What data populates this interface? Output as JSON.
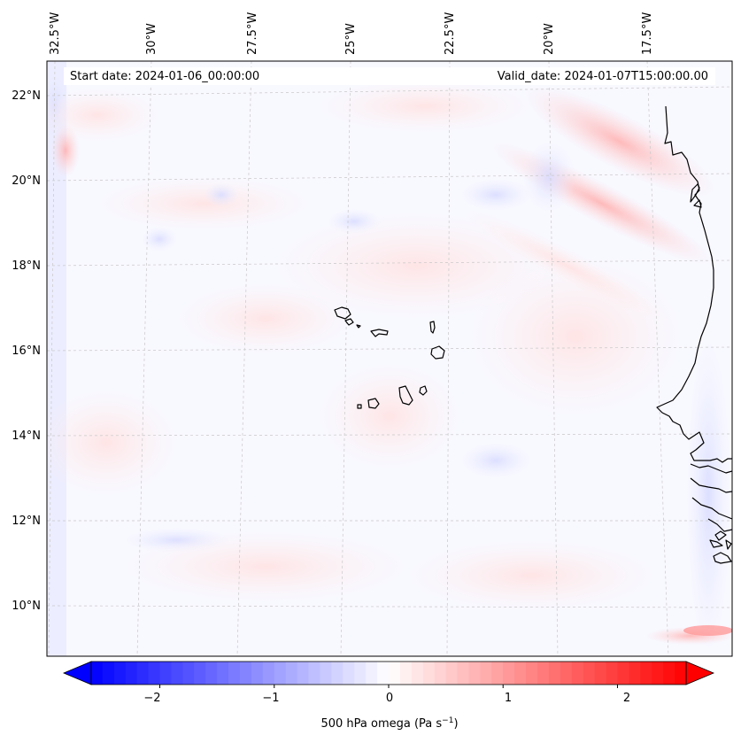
{
  "header": {
    "start_date": "Start date: 2024-01-06_00:00:00",
    "valid_date": "Valid_date: 2024-01-07T15:00:00.00"
  },
  "map": {
    "lon_labels": [
      "32.5°W",
      "30°W",
      "27.5°W",
      "25°W",
      "22.5°W",
      "20°W",
      "17.5°W"
    ],
    "lat_labels": [
      "22°N",
      "20°N",
      "18°N",
      "16°N",
      "14°N",
      "12°N",
      "10°N"
    ],
    "gridlines": "dashed",
    "coastline_color": "#000000",
    "background_color": "#f8f8ff"
  },
  "colorbar": {
    "label": "500 hPa omega (Pa s",
    "label_exp": "−1",
    "label_close": ")",
    "ticks": [
      "−2",
      "−1",
      "0",
      "1",
      "2"
    ],
    "tick_values": [
      -2,
      -1,
      0,
      1,
      2
    ],
    "range": [
      -2.6,
      2.6
    ],
    "extend": "both",
    "low_color": "#0000ff",
    "mid_color": "#ffffff",
    "high_color": "#ff0000"
  }
}
